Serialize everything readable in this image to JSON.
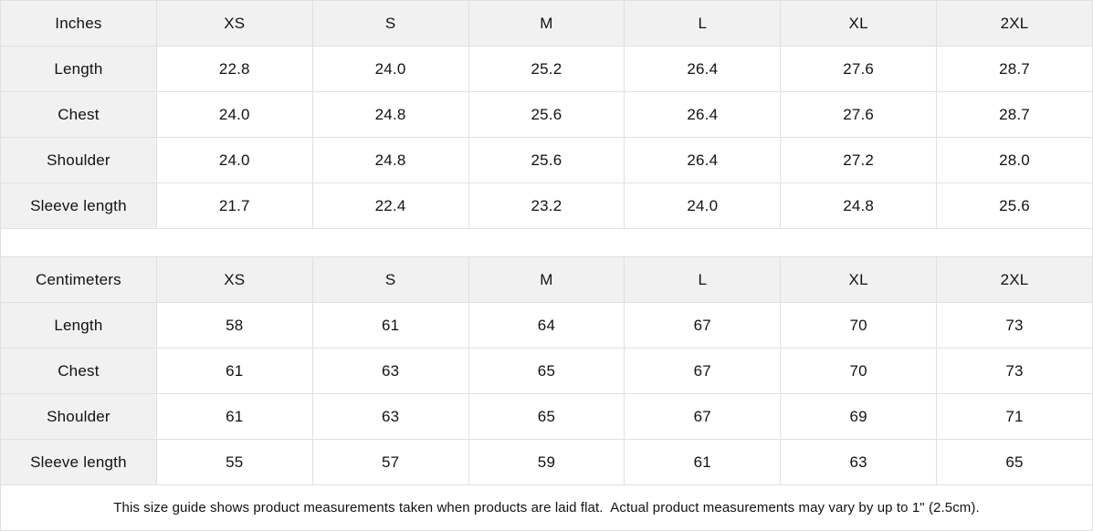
{
  "tables": [
    {
      "unit_label": "Inches",
      "size_headers": [
        "XS",
        "S",
        "M",
        "L",
        "XL",
        "2XL"
      ],
      "rows": [
        {
          "label": "Length",
          "values": [
            "22.8",
            "24.0",
            "25.2",
            "26.4",
            "27.6",
            "28.7"
          ]
        },
        {
          "label": "Chest",
          "values": [
            "24.0",
            "24.8",
            "25.6",
            "26.4",
            "27.6",
            "28.7"
          ]
        },
        {
          "label": "Shoulder",
          "values": [
            "24.0",
            "24.8",
            "25.6",
            "26.4",
            "27.2",
            "28.0"
          ]
        },
        {
          "label": "Sleeve length",
          "values": [
            "21.7",
            "22.4",
            "23.2",
            "24.0",
            "24.8",
            "25.6"
          ]
        }
      ]
    },
    {
      "unit_label": "Centimeters",
      "size_headers": [
        "XS",
        "S",
        "M",
        "L",
        "XL",
        "2XL"
      ],
      "rows": [
        {
          "label": "Length",
          "values": [
            "58",
            "61",
            "64",
            "67",
            "70",
            "73"
          ]
        },
        {
          "label": "Chest",
          "values": [
            "61",
            "63",
            "65",
            "67",
            "70",
            "73"
          ]
        },
        {
          "label": "Shoulder",
          "values": [
            "61",
            "63",
            "65",
            "67",
            "69",
            "71"
          ]
        },
        {
          "label": "Sleeve length",
          "values": [
            "55",
            "57",
            "59",
            "61",
            "63",
            "65"
          ]
        }
      ]
    }
  ],
  "footer": {
    "note": "This size guide shows product measurements taken when products are laid flat.  Actual product measurements may vary by up to 1\" (2.5cm)."
  },
  "colors": {
    "header_bg": "#f1f1f1",
    "border": "#e0e0e0",
    "text": "#121212",
    "background": "#ffffff"
  }
}
